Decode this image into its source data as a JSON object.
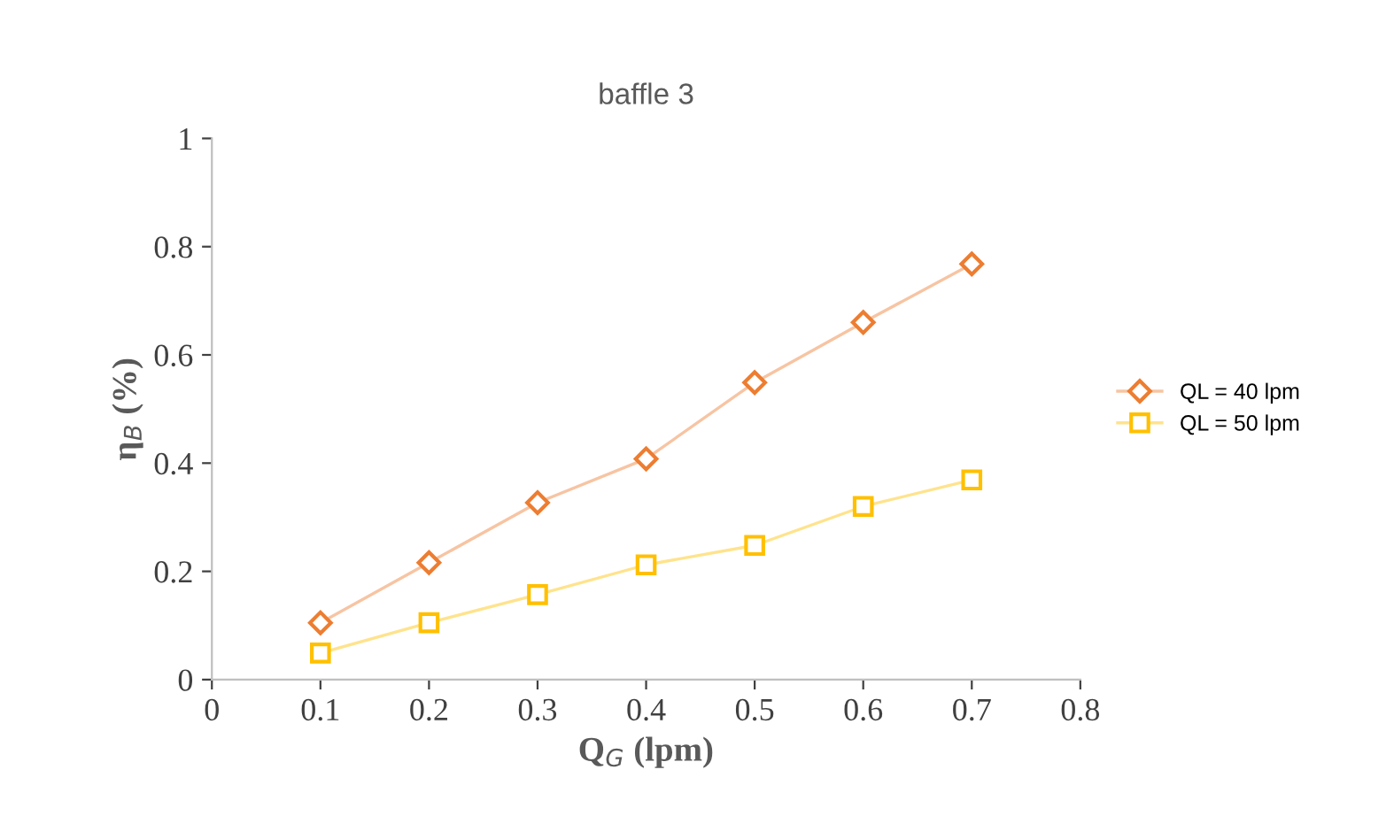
{
  "chart_data": {
    "type": "line",
    "title": "baffle 3",
    "xlabel": "Q$_{G}$ (lpm)",
    "ylabel": "η$_{B}$ (%)",
    "x": [
      0.1,
      0.2,
      0.3,
      0.4,
      0.5,
      0.6,
      0.7
    ],
    "series": [
      {
        "name": "QL = 40 lpm",
        "color": "#ed7d31",
        "marker": "diamond",
        "values": [
          0.105,
          0.216,
          0.327,
          0.408,
          0.549,
          0.66,
          0.768
        ]
      },
      {
        "name": "QL = 50 lpm",
        "color": "#ffc000",
        "marker": "square",
        "values": [
          0.049,
          0.105,
          0.157,
          0.212,
          0.248,
          0.32,
          0.369
        ]
      }
    ],
    "xlim": [
      0,
      0.8
    ],
    "xticks": [
      0,
      0.1,
      0.2,
      0.3,
      0.4,
      0.5,
      0.6,
      0.7,
      0.8
    ],
    "ylim": [
      0,
      1
    ],
    "yticks": [
      0,
      0.2,
      0.4,
      0.6,
      0.8,
      1
    ],
    "grid": false,
    "legend": "right",
    "line_style": "solid"
  }
}
